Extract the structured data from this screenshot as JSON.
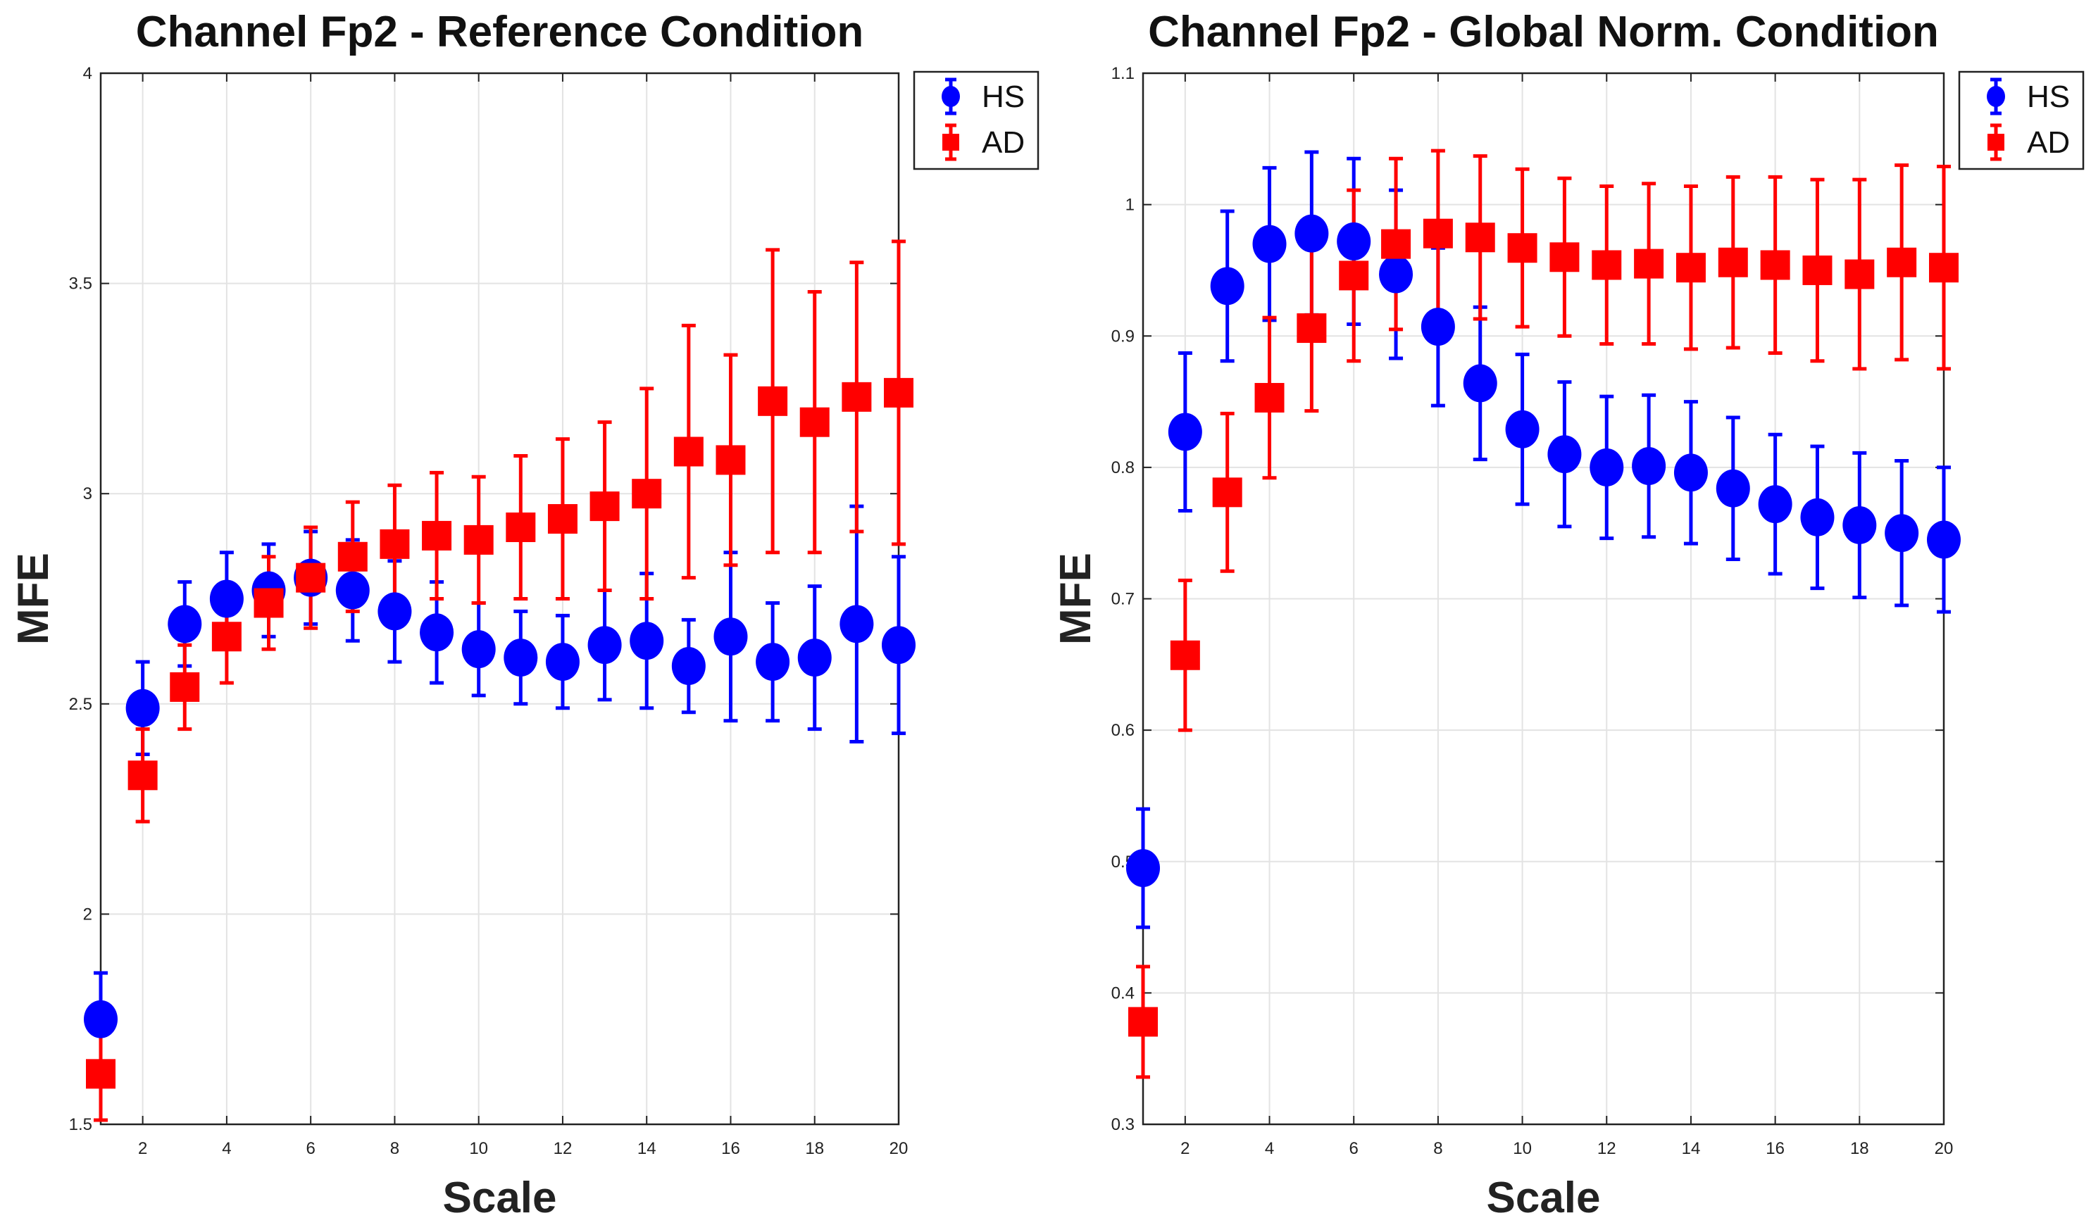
{
  "chart_data": [
    {
      "type": "errorbar",
      "title": "Channel Fp2 - Reference Condition",
      "xlabel": "Scale",
      "ylabel": "MFE",
      "xlim": [
        1,
        20
      ],
      "ylim": [
        1.5,
        4
      ],
      "xticks": [
        "2",
        "4",
        "6",
        "8",
        "10",
        "12",
        "14",
        "16",
        "18",
        "20"
      ],
      "yticks": [
        "1.5",
        "2",
        "2.5",
        "3",
        "3.5",
        "4"
      ],
      "grid": true,
      "legend_position": "top-right",
      "x": [
        1,
        2,
        3,
        4,
        5,
        6,
        7,
        8,
        9,
        10,
        11,
        12,
        13,
        14,
        15,
        16,
        17,
        18,
        19,
        20
      ],
      "series": [
        {
          "name": "HS",
          "color": "#0000ff",
          "marker": "circle",
          "values": [
            1.75,
            2.49,
            2.69,
            2.75,
            2.77,
            2.8,
            2.77,
            2.72,
            2.67,
            2.63,
            2.61,
            2.6,
            2.64,
            2.65,
            2.59,
            2.66,
            2.6,
            2.61,
            2.69,
            2.64
          ],
          "errors": [
            0.11,
            0.11,
            0.1,
            0.11,
            0.11,
            0.11,
            0.12,
            0.12,
            0.12,
            0.11,
            0.11,
            0.11,
            0.13,
            0.16,
            0.11,
            0.2,
            0.14,
            0.17,
            0.28,
            0.21
          ]
        },
        {
          "name": "AD",
          "color": "#ff0000",
          "marker": "square",
          "values": [
            1.62,
            2.33,
            2.54,
            2.66,
            2.74,
            2.8,
            2.85,
            2.88,
            2.9,
            2.89,
            2.92,
            2.94,
            2.97,
            3.0,
            3.1,
            3.08,
            3.22,
            3.17,
            3.23,
            3.24
          ],
          "errors": [
            0.11,
            0.11,
            0.1,
            0.11,
            0.11,
            0.12,
            0.13,
            0.14,
            0.15,
            0.15,
            0.17,
            0.19,
            0.2,
            0.25,
            0.3,
            0.25,
            0.36,
            0.31,
            0.32,
            0.36
          ]
        }
      ]
    },
    {
      "type": "errorbar",
      "title": "Channel Fp2 - Global Norm. Condition",
      "xlabel": "Scale",
      "ylabel": "MFE",
      "xlim": [
        1,
        20
      ],
      "ylim": [
        0.3,
        1.1
      ],
      "xticks": [
        "2",
        "4",
        "6",
        "8",
        "10",
        "12",
        "14",
        "16",
        "18",
        "20"
      ],
      "yticks": [
        "0.3",
        "0.4",
        "0.5",
        "0.6",
        "0.7",
        "0.8",
        "0.9",
        "1",
        "1.1"
      ],
      "grid": true,
      "legend_position": "top-right",
      "x": [
        1,
        2,
        3,
        4,
        5,
        6,
        7,
        8,
        9,
        10,
        11,
        12,
        13,
        14,
        15,
        16,
        17,
        18,
        19,
        20
      ],
      "series": [
        {
          "name": "HS",
          "color": "#0000ff",
          "marker": "circle",
          "values": [
            0.495,
            0.827,
            0.938,
            0.97,
            0.978,
            0.972,
            0.947,
            0.907,
            0.864,
            0.829,
            0.81,
            0.8,
            0.801,
            0.796,
            0.784,
            0.772,
            0.762,
            0.756,
            0.75,
            0.745
          ],
          "errors": [
            0.045,
            0.06,
            0.057,
            0.058,
            0.062,
            0.063,
            0.064,
            0.06,
            0.058,
            0.057,
            0.055,
            0.054,
            0.054,
            0.054,
            0.054,
            0.053,
            0.054,
            0.055,
            0.055,
            0.055
          ]
        },
        {
          "name": "AD",
          "color": "#ff0000",
          "marker": "square",
          "values": [
            0.378,
            0.657,
            0.781,
            0.853,
            0.906,
            0.946,
            0.97,
            0.978,
            0.975,
            0.967,
            0.96,
            0.954,
            0.955,
            0.952,
            0.956,
            0.954,
            0.95,
            0.947,
            0.956,
            0.952
          ],
          "errors": [
            0.042,
            0.057,
            0.06,
            0.061,
            0.063,
            0.065,
            0.065,
            0.063,
            0.062,
            0.06,
            0.06,
            0.06,
            0.061,
            0.062,
            0.065,
            0.067,
            0.069,
            0.072,
            0.074,
            0.077
          ]
        }
      ]
    }
  ]
}
